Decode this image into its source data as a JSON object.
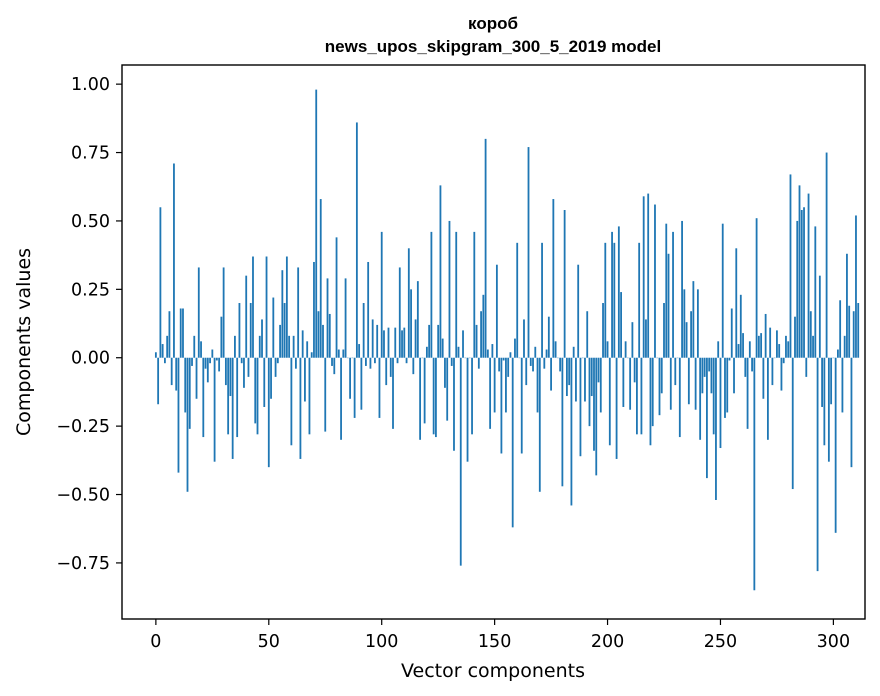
{
  "chart_data": {
    "type": "bar",
    "title_line1": "короб",
    "title_line2": "news_upos_skipgram_300_5_2019 model",
    "xlabel": "Vector components",
    "ylabel": "Components values",
    "xlim": [
      -15,
      314
    ],
    "ylim": [
      -0.955,
      1.07
    ],
    "xticks": [
      0,
      50,
      100,
      150,
      200,
      250,
      300
    ],
    "xtick_labels": [
      "0",
      "50",
      "100",
      "150",
      "200",
      "250",
      "300"
    ],
    "yticks": [
      1.0,
      0.75,
      0.5,
      0.25,
      0.0,
      -0.25,
      -0.5,
      -0.75
    ],
    "ytick_labels": [
      "1.00",
      "0.75",
      "0.50",
      "0.25",
      "0.00",
      "−0.25",
      "−0.50",
      "−0.75"
    ],
    "bar_color": "#1f77b4",
    "grid": false,
    "values": [
      0.02,
      -0.17,
      0.55,
      0.05,
      -0.02,
      0.08,
      0.17,
      -0.1,
      0.71,
      -0.12,
      -0.42,
      0.18,
      0.18,
      -0.2,
      -0.49,
      -0.26,
      -0.03,
      0.08,
      -0.15,
      0.33,
      0.06,
      -0.29,
      -0.04,
      -0.09,
      -0.02,
      0.03,
      -0.38,
      -0.01,
      -0.05,
      0.15,
      0.33,
      -0.1,
      -0.28,
      -0.14,
      -0.37,
      0.08,
      -0.29,
      0.2,
      -0.02,
      -0.11,
      0.3,
      -0.07,
      0.2,
      0.37,
      -0.24,
      -0.28,
      0.08,
      0.14,
      -0.18,
      0.37,
      -0.4,
      -0.15,
      0.22,
      -0.07,
      -0.02,
      0.12,
      0.32,
      0.2,
      0.37,
      0.08,
      -0.32,
      0.08,
      -0.04,
      0.33,
      -0.37,
      0.1,
      -0.16,
      0.06,
      -0.28,
      0.02,
      0.35,
      0.98,
      0.17,
      0.58,
      0.12,
      -0.27,
      0.29,
      0.16,
      -0.03,
      -0.06,
      0.44,
      0.03,
      -0.3,
      0.03,
      0.29,
      0.0,
      -0.15,
      0.0,
      -0.22,
      0.86,
      0.05,
      -0.19,
      0.2,
      -0.03,
      0.35,
      -0.04,
      0.14,
      -0.02,
      0.12,
      -0.22,
      0.46,
      0.1,
      -0.1,
      0.11,
      -0.07,
      -0.26,
      0.11,
      -0.02,
      0.33,
      0.1,
      0.11,
      -0.02,
      0.4,
      0.25,
      -0.06,
      0.14,
      0.28,
      -0.3,
      0.0,
      -0.24,
      0.04,
      0.12,
      0.46,
      -0.28,
      -0.29,
      0.12,
      0.63,
      0.07,
      -0.11,
      -0.23,
      0.5,
      -0.03,
      -0.34,
      0.46,
      0.04,
      -0.76,
      0.1,
      0.0,
      -0.38,
      0.0,
      -0.28,
      0.46,
      0.12,
      -0.04,
      0.17,
      0.23,
      0.8,
      0.03,
      -0.26,
      0.05,
      -0.2,
      0.34,
      -0.05,
      -0.35,
      -0.01,
      -0.2,
      -0.07,
      0.02,
      -0.62,
      0.07,
      0.42,
      0.0,
      -0.35,
      0.14,
      -0.1,
      0.77,
      -0.03,
      -0.05,
      0.04,
      -0.2,
      -0.49,
      0.42,
      -0.04,
      0.03,
      0.15,
      -0.12,
      0.58,
      0.06,
      0.0,
      -0.05,
      -0.47,
      0.54,
      -0.14,
      -0.1,
      -0.54,
      0.04,
      -0.16,
      0.34,
      -0.36,
      0.0,
      -0.16,
      0.17,
      -0.25,
      -0.14,
      -0.34,
      -0.43,
      -0.09,
      -0.2,
      0.2,
      0.42,
      0.06,
      -0.32,
      0.46,
      0.42,
      -0.37,
      0.48,
      0.24,
      -0.18,
      0.06,
      0.0,
      -0.19,
      0.13,
      -0.09,
      -0.28,
      0.42,
      -0.28,
      0.59,
      0.14,
      0.6,
      -0.32,
      -0.25,
      0.56,
      0.0,
      -0.21,
      -0.13,
      0.2,
      0.49,
      0.38,
      -0.19,
      0.46,
      -0.1,
      0.0,
      -0.29,
      0.5,
      0.25,
      0.13,
      -0.17,
      0.17,
      0.28,
      -0.19,
      0.25,
      -0.3,
      -0.13,
      -0.07,
      -0.44,
      -0.05,
      -0.13,
      -0.28,
      -0.52,
      0.06,
      -0.33,
      0.49,
      -0.22,
      -0.2,
      -0.01,
      0.18,
      -0.13,
      0.4,
      0.05,
      0.23,
      0.09,
      -0.07,
      -0.26,
      0.06,
      -0.05,
      -0.85,
      0.51,
      0.08,
      0.09,
      -0.15,
      0.16,
      -0.3,
      0.11,
      -0.1,
      0.0,
      0.1,
      0.05,
      -0.12,
      -0.02,
      0.08,
      0.06,
      0.67,
      -0.48,
      0.15,
      0.5,
      0.63,
      0.54,
      0.55,
      -0.07,
      0.6,
      0.17,
      0.08,
      0.48,
      -0.78,
      0.3,
      -0.18,
      -0.32,
      0.75,
      -0.38,
      -0.17,
      0.0,
      -0.64,
      0.03,
      0.21,
      -0.2,
      0.08,
      0.38,
      0.19,
      -0.4,
      0.17,
      0.52,
      0.2
    ]
  }
}
